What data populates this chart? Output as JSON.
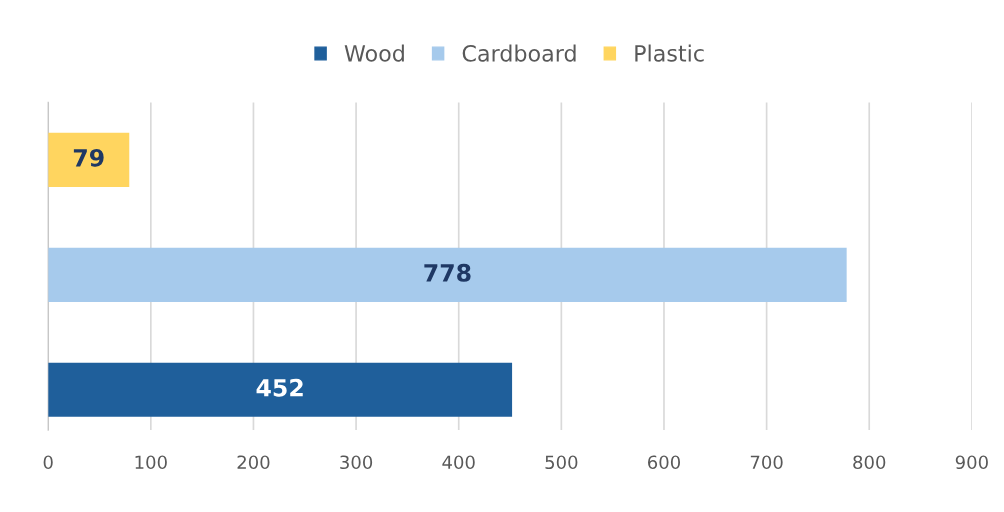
{
  "chart_data": {
    "type": "bar",
    "orientation": "horizontal",
    "categories": [
      null
    ],
    "series": [
      {
        "name": "Wood",
        "color": "#1f5f9b",
        "values": [
          452
        ]
      },
      {
        "name": "Cardboard",
        "color": "#a6caec",
        "values": [
          778
        ]
      },
      {
        "name": "Plastic",
        "color": "#ffd55f",
        "values": [
          79
        ]
      }
    ],
    "xlim": [
      0,
      900
    ],
    "xticks": [
      0,
      100,
      200,
      300,
      400,
      500,
      600,
      700,
      800,
      900
    ],
    "grid": "x",
    "legend": "top",
    "data_labels": true
  }
}
